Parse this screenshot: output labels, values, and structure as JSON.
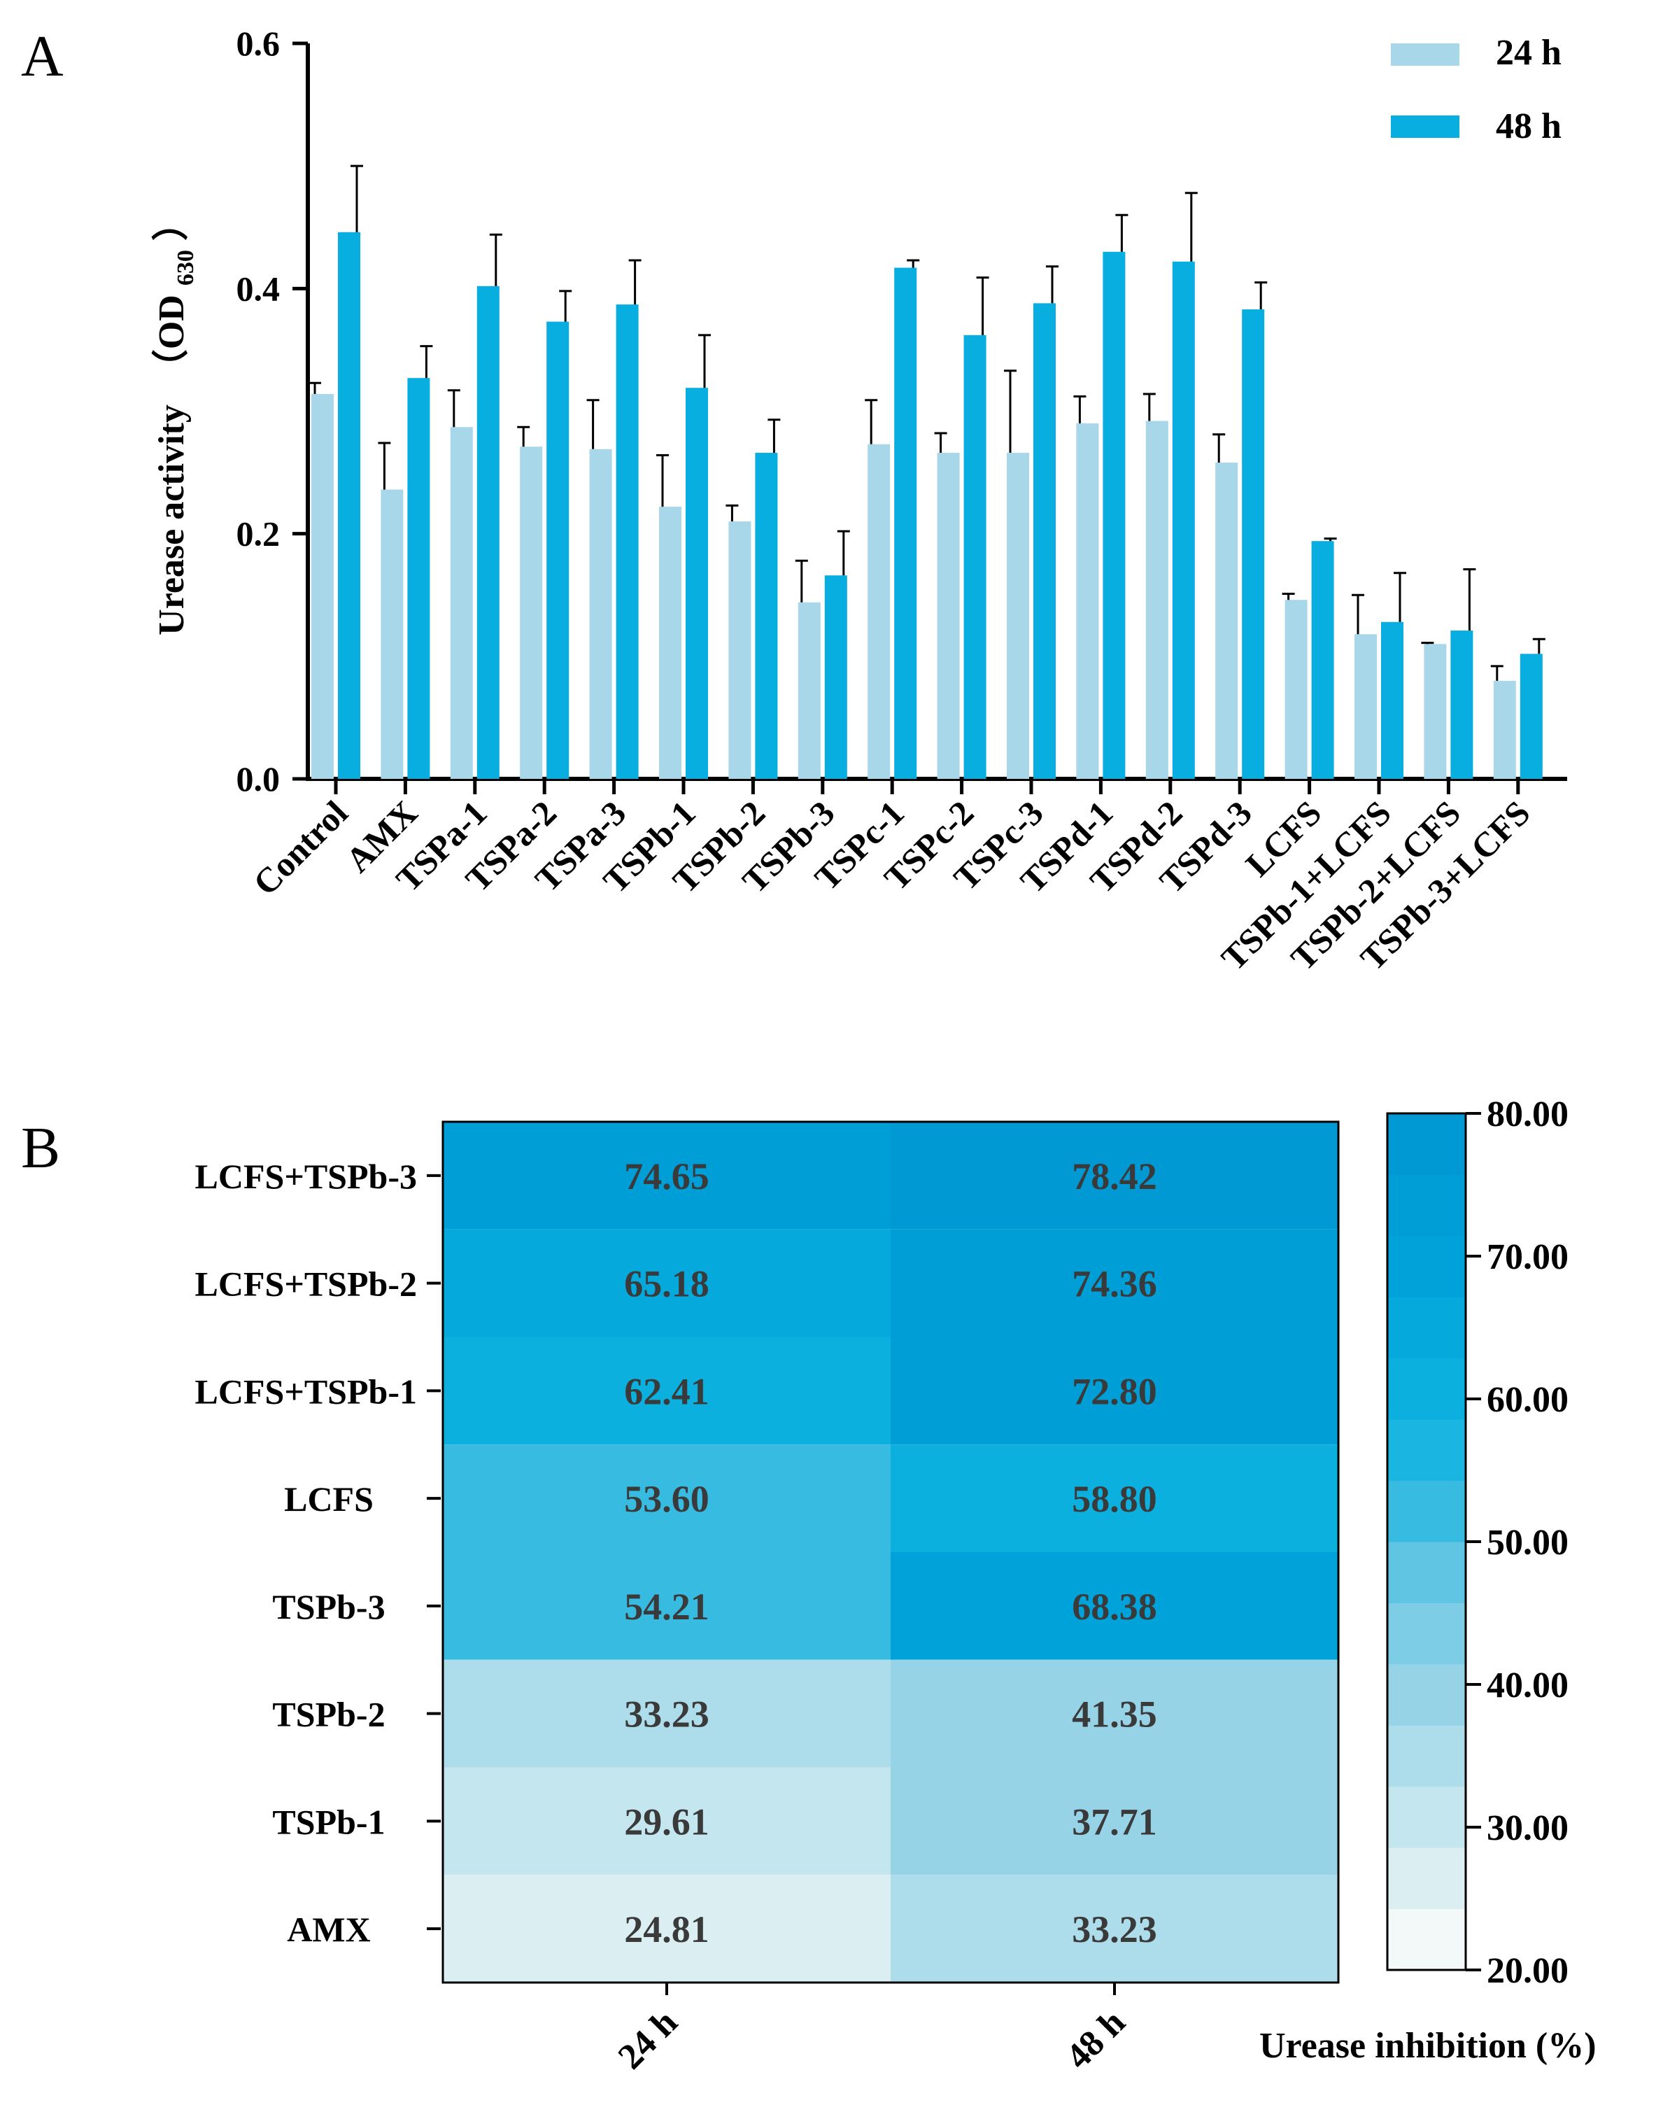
{
  "figure": {
    "panel_a_letter": "A",
    "panel_b_letter": "B"
  },
  "colors": {
    "series_24h": "#a7d7e8",
    "series_48h": "#08aee0",
    "axis": "#000000",
    "cell_text": "#3a3a3a",
    "scale_low": "#f4f8f8",
    "scale_high": "#009bd5"
  },
  "chart_data": [
    {
      "type": "bar",
      "title": "",
      "xlabel": "",
      "ylabel": "Urease activity",
      "ylabel_paren": "（OD",
      "ylabel_sub": "630",
      "ylabel_paren_close": "）",
      "ylim": [
        0,
        0.6
      ],
      "yticks": [
        "0.0",
        "0.2",
        "0.4",
        "0.6"
      ],
      "ytick_values": [
        0,
        0.2,
        0.4,
        0.6
      ],
      "legend_position": "top-right",
      "categories": [
        "Control",
        "AMX",
        "TSPa-1",
        "TSPa-2",
        "TSPa-3",
        "TSPb-1",
        "TSPb-2",
        "TSPb-3",
        "TSPc-1",
        "TSPc-2",
        "TSPc-3",
        "TSPd-1",
        "TSPd-2",
        "TSPd-3",
        "LCFS",
        "TSPb-1+LCFS",
        "TSPb-2+LCFS",
        "TSPb-3+LCFS"
      ],
      "series": [
        {
          "name": "24 h",
          "values": [
            0.314,
            0.236,
            0.287,
            0.271,
            0.269,
            0.222,
            0.21,
            0.144,
            0.273,
            0.266,
            0.266,
            0.29,
            0.292,
            0.258,
            0.146,
            0.118,
            0.11,
            0.08
          ],
          "errors": [
            0.009,
            0.038,
            0.03,
            0.016,
            0.04,
            0.042,
            0.013,
            0.034,
            0.036,
            0.016,
            0.067,
            0.022,
            0.022,
            0.023,
            0.005,
            0.032,
            0.001,
            0.012
          ]
        },
        {
          "name": "48 h",
          "values": [
            0.446,
            0.327,
            0.402,
            0.373,
            0.387,
            0.319,
            0.266,
            0.166,
            0.417,
            0.362,
            0.388,
            0.43,
            0.422,
            0.383,
            0.194,
            0.128,
            0.121,
            0.102
          ],
          "errors": [
            0.054,
            0.026,
            0.042,
            0.025,
            0.036,
            0.043,
            0.027,
            0.036,
            0.006,
            0.047,
            0.03,
            0.03,
            0.056,
            0.022,
            0.002,
            0.04,
            0.05,
            0.012
          ]
        }
      ]
    },
    {
      "type": "heatmap",
      "title": "",
      "xlabel": "",
      "ylabel": "",
      "rows": [
        "LCFS+TSPb-3",
        "LCFS+TSPb-2",
        "LCFS+TSPb-1",
        "LCFS",
        "TSPb-3",
        "TSPb-2",
        "TSPb-1",
        "AMX"
      ],
      "columns": [
        "24 h",
        "48 h"
      ],
      "values": [
        [
          74.65,
          78.42
        ],
        [
          65.18,
          74.36
        ],
        [
          62.41,
          72.8
        ],
        [
          53.6,
          58.8
        ],
        [
          54.21,
          68.38
        ],
        [
          33.23,
          41.35
        ],
        [
          29.61,
          37.71
        ],
        [
          24.81,
          33.23
        ]
      ],
      "cell_labels": [
        [
          "74.65",
          "78.42"
        ],
        [
          "65.18",
          "74.36"
        ],
        [
          "62.41",
          "72.80"
        ],
        [
          "53.60",
          "58.80"
        ],
        [
          "54.21",
          "68.38"
        ],
        [
          "33.23",
          "41.35"
        ],
        [
          "29.61",
          "37.71"
        ],
        [
          "24.81",
          "33.23"
        ]
      ],
      "colorbar_label": "Urease inhibition (%)",
      "colorbar_range": [
        20,
        80
      ],
      "colorbar_ticks": [
        "80.00",
        "70.00",
        "60.00",
        "50.00",
        "40.00",
        "30.00",
        "20.00"
      ],
      "colorbar_tick_values": [
        80,
        70,
        60,
        50,
        40,
        30,
        20
      ],
      "colorbar_steps": [
        "#f3f8f8",
        "#dbeff2",
        "#c4e6ee",
        "#addcea",
        "#96d3e6",
        "#7dcde6",
        "#60c4e3",
        "#38bbe0",
        "#1ab5e0",
        "#0cb0de",
        "#05a9dc",
        "#00a3d9",
        "#009ed7",
        "#0099d3"
      ]
    }
  ]
}
